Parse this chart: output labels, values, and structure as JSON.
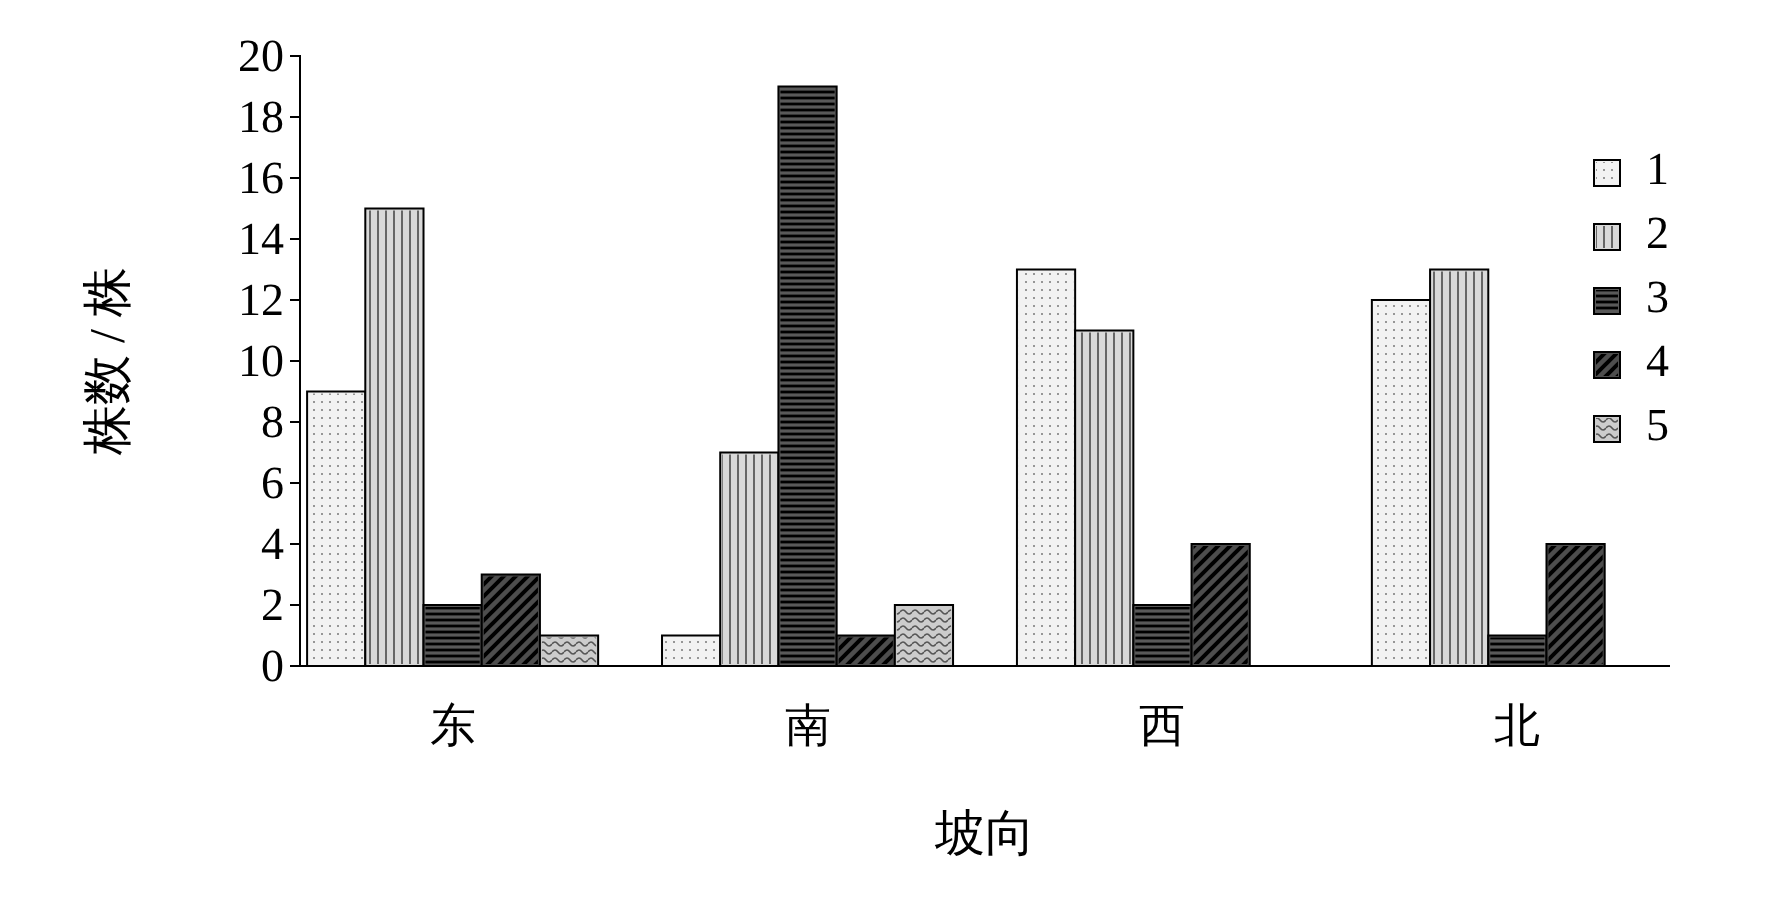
{
  "chart_data": {
    "type": "bar",
    "xlabel": "坡向",
    "ylabel": "株数 / 株",
    "categories": [
      "东",
      "南",
      "西",
      "北"
    ],
    "series": [
      {
        "name": "1",
        "color": "#f2f2f2",
        "values": [
          9,
          1,
          13,
          12
        ]
      },
      {
        "name": "2",
        "color": "#d9d9d9",
        "values": [
          15,
          7,
          11,
          13
        ]
      },
      {
        "name": "3",
        "color": "#595959",
        "values": [
          2,
          19,
          2,
          1
        ]
      },
      {
        "name": "4",
        "color": "#4d4d4d",
        "values": [
          3,
          1,
          4,
          4
        ]
      },
      {
        "name": "5",
        "color": "#cccccc",
        "values": [
          1,
          2,
          null,
          null
        ]
      }
    ],
    "ylim": [
      0,
      20
    ],
    "yticks": [
      0,
      2,
      4,
      6,
      8,
      10,
      12,
      14,
      16,
      18,
      20
    ],
    "grid": false,
    "legend": "right"
  }
}
